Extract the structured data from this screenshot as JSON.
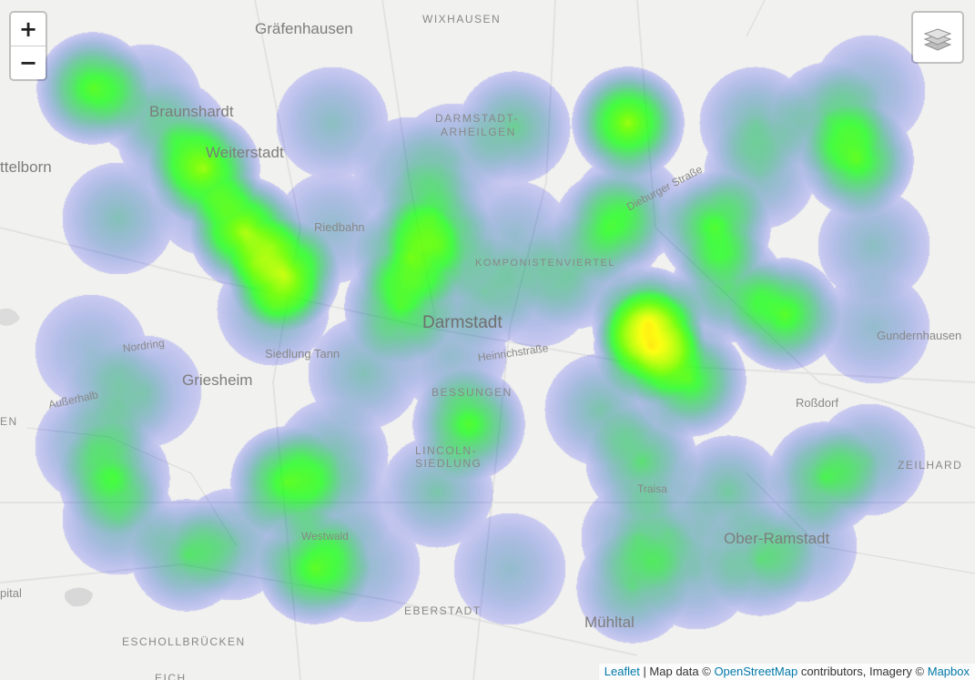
{
  "map": {
    "zoom_in_label": "+",
    "zoom_out_label": "−",
    "layers_icon": "layers-icon",
    "labels": [
      {
        "id": "wixhausen",
        "text": "WIXHAUSEN"
      },
      {
        "id": "graefenhausen",
        "text": "Gräfenhausen"
      },
      {
        "id": "braunshardt",
        "text": "Braunshardt"
      },
      {
        "id": "weiterstadt",
        "text": "Weiterstadt"
      },
      {
        "id": "ttelborn",
        "text": "ttelborn"
      },
      {
        "id": "darmstadt-arheilgen-1",
        "text": "DARMSTADT-"
      },
      {
        "id": "darmstadt-arheilgen-2",
        "text": "ARHEILGEN"
      },
      {
        "id": "riedbahn",
        "text": "Riedbahn"
      },
      {
        "id": "komponistenviertel",
        "text": "KOMPONISTENVIERTEL"
      },
      {
        "id": "dieburger-strasse",
        "text": "Dieburger Straße"
      },
      {
        "id": "darmstadt",
        "text": "Darmstadt"
      },
      {
        "id": "nordring",
        "text": "Nordring"
      },
      {
        "id": "siedlung-tann",
        "text": "Siedlung Tann"
      },
      {
        "id": "heinrichstrasse",
        "text": "Heinrichstraße"
      },
      {
        "id": "griesheim",
        "text": "Griesheim"
      },
      {
        "id": "ausserhalb",
        "text": "Außerhalb"
      },
      {
        "id": "en",
        "text": "EN"
      },
      {
        "id": "bessungen",
        "text": "BESSUNGEN"
      },
      {
        "id": "lincoln-1",
        "text": "LINCOLN-"
      },
      {
        "id": "lincoln-2",
        "text": "SIEDLUNG"
      },
      {
        "id": "gundernhausen",
        "text": "Gundernhausen"
      },
      {
        "id": "rossdorf",
        "text": "Roßdorf"
      },
      {
        "id": "zeilhard",
        "text": "ZEILHARD"
      },
      {
        "id": "traisa",
        "text": "Traisa"
      },
      {
        "id": "westwald",
        "text": "Westwald"
      },
      {
        "id": "ober-ramstadt",
        "text": "Ober-Ramstadt"
      },
      {
        "id": "pital",
        "text": "pital"
      },
      {
        "id": "eberstadt",
        "text": "EBERSTADT"
      },
      {
        "id": "muehltal",
        "text": "Mühltal"
      },
      {
        "id": "eschollbruecken",
        "text": "ESCHOLLBRÜCKEN"
      },
      {
        "id": "eich",
        "text": "EICH"
      }
    ]
  },
  "heatmap": {
    "gradient": [
      "#0000ff",
      "#00ff00",
      "#ffff00",
      "#ff0000"
    ],
    "note_hot": "red = highest density"
  },
  "attribution": {
    "leaflet": "Leaflet",
    "sep": " | Map data © ",
    "osm": "OpenStreetMap",
    "mid": " contributors, Imagery © ",
    "mapbox": "Mapbox"
  }
}
